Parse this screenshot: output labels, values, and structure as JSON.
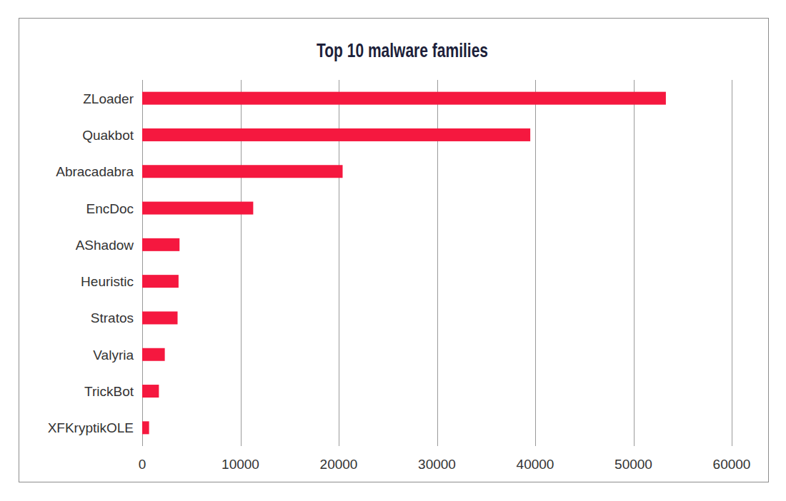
{
  "chart_data": {
    "type": "bar",
    "orientation": "horizontal",
    "title": "Top 10 malware families",
    "categories": [
      "ZLoader",
      "Quakbot",
      "Abracadabra",
      "EncDoc",
      "AShadow",
      "Heuristic",
      "Stratos",
      "Valyria",
      "TrickBot",
      "XFKryptikOLE"
    ],
    "values": [
      53300,
      39500,
      20400,
      11300,
      3800,
      3700,
      3600,
      2300,
      1700,
      700
    ],
    "color": "#f5183f",
    "xlim": [
      0,
      60000
    ],
    "xticks": [
      0,
      10000,
      20000,
      30000,
      40000,
      50000,
      60000
    ],
    "grid": true
  }
}
